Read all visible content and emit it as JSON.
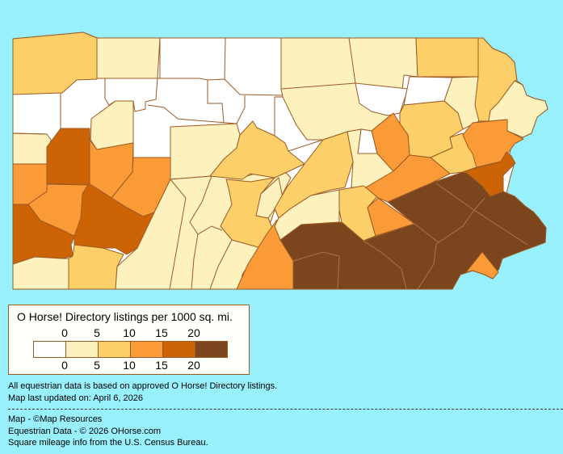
{
  "legend": {
    "title": "O Horse! Directory listings per 1000 sq. mi.",
    "top_ticks": [
      "0",
      "5",
      "10",
      "15",
      "20"
    ],
    "bottom_ticks": [
      "0",
      "5",
      "10",
      "15",
      "20"
    ],
    "bins": [
      {
        "range": "0",
        "color": "#ffffff"
      },
      {
        "range": "0-5",
        "color": "#fdf2bd"
      },
      {
        "range": "5-10",
        "color": "#fdcf68"
      },
      {
        "range": "10-15",
        "color": "#fb9b37"
      },
      {
        "range": "15-20",
        "color": "#cc6405"
      },
      {
        "range": "20+",
        "color": "#7b451e"
      }
    ]
  },
  "notes": {
    "data_basis": "All equestrian data is based on approved O Horse! Directory listings.",
    "updated": "Map last updated on: April 6, 2026"
  },
  "credits": {
    "map": "Map - ©Map Resources",
    "equestrian": "Equestrian Data - © 2026 OHorse.com",
    "census": "Square mileage info from the U.S. Census Bureau."
  },
  "colors": {
    "background": "#98f0fd",
    "border": "#9c5a25"
  }
}
